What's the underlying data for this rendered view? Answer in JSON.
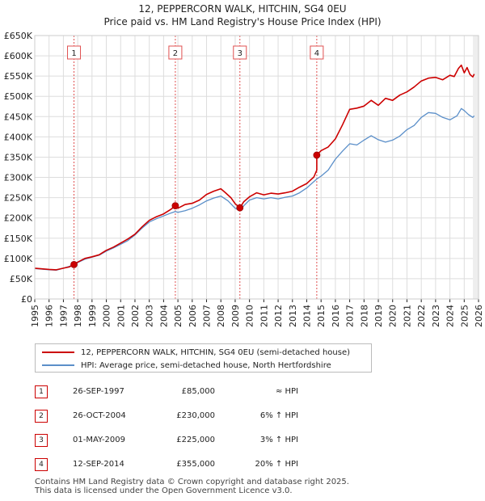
{
  "header": {
    "title": "12, PEPPERCORN WALK, HITCHIN, SG4 0EU",
    "subtitle": "Price paid vs. HM Land Registry's House Price Index (HPI)"
  },
  "colors": {
    "property": "#cc0000",
    "hpi": "#5b8fc9",
    "marker_line": "#e05050",
    "background": "#ffffff"
  },
  "chart_data": {
    "type": "line",
    "title": "12, PEPPERCORN WALK, HITCHIN, SG4 0EU",
    "subtitle": "Price paid vs. HM Land Registry's House Price Index (HPI)",
    "xlabel": "",
    "ylabel": "",
    "xlim": [
      1995,
      2026
    ],
    "ylim": [
      0,
      650000
    ],
    "y_ticks": [
      0,
      50000,
      100000,
      150000,
      200000,
      250000,
      300000,
      350000,
      400000,
      450000,
      500000,
      550000,
      600000,
      650000
    ],
    "y_tick_labels": [
      "£0",
      "£50K",
      "£100K",
      "£150K",
      "£200K",
      "£250K",
      "£300K",
      "£350K",
      "£400K",
      "£450K",
      "£500K",
      "£550K",
      "£600K",
      "£650K"
    ],
    "x_ticks": [
      1995,
      1996,
      1997,
      1998,
      1999,
      2000,
      2001,
      2002,
      2003,
      2004,
      2005,
      2006,
      2007,
      2008,
      2009,
      2010,
      2011,
      2012,
      2013,
      2014,
      2015,
      2016,
      2017,
      2018,
      2019,
      2020,
      2021,
      2022,
      2023,
      2024,
      2025,
      2026
    ],
    "grid": true,
    "series": [
      {
        "name": "12, PEPPERCORN WALK, HITCHIN, SG4 0EU (semi-detached house)",
        "color": "#cc0000",
        "points": [
          [
            1995.0,
            76000
          ],
          [
            1996.0,
            73000
          ],
          [
            1996.5,
            72000
          ],
          [
            1997.0,
            76000
          ],
          [
            1997.4,
            79000
          ],
          [
            1997.74,
            85000
          ],
          [
            1998.0,
            91000
          ],
          [
            1998.5,
            100000
          ],
          [
            1999.0,
            104000
          ],
          [
            1999.5,
            109000
          ],
          [
            2000.0,
            120000
          ],
          [
            2000.5,
            128000
          ],
          [
            2001.0,
            138000
          ],
          [
            2001.5,
            148000
          ],
          [
            2002.0,
            160000
          ],
          [
            2002.5,
            178000
          ],
          [
            2003.0,
            194000
          ],
          [
            2003.5,
            203000
          ],
          [
            2004.0,
            210000
          ],
          [
            2004.5,
            221000
          ],
          [
            2004.82,
            230000
          ],
          [
            2005.0,
            224000
          ],
          [
            2005.5,
            233000
          ],
          [
            2006.0,
            236000
          ],
          [
            2006.5,
            244000
          ],
          [
            2007.0,
            258000
          ],
          [
            2007.5,
            266000
          ],
          [
            2008.0,
            272000
          ],
          [
            2008.3,
            263000
          ],
          [
            2008.7,
            250000
          ],
          [
            2009.0,
            235000
          ],
          [
            2009.33,
            225000
          ],
          [
            2009.6,
            240000
          ],
          [
            2010.0,
            252000
          ],
          [
            2010.5,
            262000
          ],
          [
            2011.0,
            257000
          ],
          [
            2011.5,
            261000
          ],
          [
            2012.0,
            259000
          ],
          [
            2012.5,
            262000
          ],
          [
            2013.0,
            266000
          ],
          [
            2013.5,
            276000
          ],
          [
            2014.0,
            285000
          ],
          [
            2014.5,
            301000
          ],
          [
            2014.7,
            318000
          ],
          [
            2014.7,
            355000
          ],
          [
            2015.0,
            366000
          ],
          [
            2015.5,
            375000
          ],
          [
            2016.0,
            395000
          ],
          [
            2016.5,
            430000
          ],
          [
            2017.0,
            468000
          ],
          [
            2017.5,
            471000
          ],
          [
            2018.0,
            476000
          ],
          [
            2018.5,
            490000
          ],
          [
            2019.0,
            478000
          ],
          [
            2019.5,
            495000
          ],
          [
            2020.0,
            490000
          ],
          [
            2020.5,
            503000
          ],
          [
            2021.0,
            511000
          ],
          [
            2021.5,
            523000
          ],
          [
            2022.0,
            538000
          ],
          [
            2022.5,
            545000
          ],
          [
            2023.0,
            547000
          ],
          [
            2023.5,
            541000
          ],
          [
            2024.0,
            552000
          ],
          [
            2024.3,
            549000
          ],
          [
            2024.6,
            569000
          ],
          [
            2024.8,
            577000
          ],
          [
            2025.0,
            558000
          ],
          [
            2025.2,
            571000
          ],
          [
            2025.4,
            554000
          ],
          [
            2025.6,
            548000
          ],
          [
            2025.7,
            555000
          ]
        ]
      },
      {
        "name": "HPI: Average price, semi-detached house, North Hertfordshire",
        "color": "#5b8fc9",
        "points": [
          [
            1995.0,
            75000
          ],
          [
            1996.0,
            72000
          ],
          [
            1996.5,
            71000
          ],
          [
            1997.0,
            76000
          ],
          [
            1997.74,
            84000
          ],
          [
            1998.0,
            90000
          ],
          [
            1998.5,
            98000
          ],
          [
            1999.0,
            103000
          ],
          [
            1999.5,
            108000
          ],
          [
            2000.0,
            118000
          ],
          [
            2000.5,
            126000
          ],
          [
            2001.0,
            135000
          ],
          [
            2001.5,
            144000
          ],
          [
            2002.0,
            158000
          ],
          [
            2002.5,
            175000
          ],
          [
            2003.0,
            190000
          ],
          [
            2003.5,
            198000
          ],
          [
            2004.0,
            205000
          ],
          [
            2004.5,
            212000
          ],
          [
            2004.82,
            216000
          ],
          [
            2005.0,
            214000
          ],
          [
            2005.5,
            218000
          ],
          [
            2006.0,
            224000
          ],
          [
            2006.5,
            232000
          ],
          [
            2007.0,
            242000
          ],
          [
            2007.5,
            249000
          ],
          [
            2008.0,
            254000
          ],
          [
            2008.5,
            242000
          ],
          [
            2009.0,
            224000
          ],
          [
            2009.33,
            218000
          ],
          [
            2009.6,
            230000
          ],
          [
            2010.0,
            244000
          ],
          [
            2010.5,
            250000
          ],
          [
            2011.0,
            247000
          ],
          [
            2011.5,
            250000
          ],
          [
            2012.0,
            247000
          ],
          [
            2012.5,
            251000
          ],
          [
            2013.0,
            254000
          ],
          [
            2013.5,
            262000
          ],
          [
            2014.0,
            274000
          ],
          [
            2014.7,
            296000
          ],
          [
            2015.0,
            303000
          ],
          [
            2015.5,
            318000
          ],
          [
            2016.0,
            345000
          ],
          [
            2016.5,
            365000
          ],
          [
            2017.0,
            383000
          ],
          [
            2017.5,
            380000
          ],
          [
            2018.0,
            392000
          ],
          [
            2018.5,
            403000
          ],
          [
            2019.0,
            393000
          ],
          [
            2019.5,
            387000
          ],
          [
            2020.0,
            392000
          ],
          [
            2020.5,
            402000
          ],
          [
            2021.0,
            418000
          ],
          [
            2021.5,
            428000
          ],
          [
            2022.0,
            448000
          ],
          [
            2022.5,
            460000
          ],
          [
            2023.0,
            458000
          ],
          [
            2023.5,
            448000
          ],
          [
            2024.0,
            442000
          ],
          [
            2024.5,
            452000
          ],
          [
            2024.8,
            470000
          ],
          [
            2025.0,
            465000
          ],
          [
            2025.3,
            455000
          ],
          [
            2025.6,
            448000
          ],
          [
            2025.7,
            452000
          ]
        ]
      }
    ],
    "sales": [
      {
        "num": "1",
        "x": 1997.74,
        "price": 85000
      },
      {
        "num": "2",
        "x": 2004.82,
        "price": 230000
      },
      {
        "num": "3",
        "x": 2009.33,
        "price": 225000
      },
      {
        "num": "4",
        "x": 2014.7,
        "price": 355000
      }
    ]
  },
  "legend": {
    "items": [
      {
        "label": "12, PEPPERCORN WALK, HITCHIN, SG4 0EU (semi-detached house)"
      },
      {
        "label": "HPI: Average price, semi-detached house, North Hertfordshire"
      }
    ]
  },
  "transactions": [
    {
      "num": "1",
      "date": "26-SEP-1997",
      "price": "£85,000",
      "hpi": "≈ HPI"
    },
    {
      "num": "2",
      "date": "26-OCT-2004",
      "price": "£230,000",
      "hpi": "6% ↑ HPI"
    },
    {
      "num": "3",
      "date": "01-MAY-2009",
      "price": "£225,000",
      "hpi": "3% ↑ HPI"
    },
    {
      "num": "4",
      "date": "12-SEP-2014",
      "price": "£355,000",
      "hpi": "20% ↑ HPI"
    }
  ],
  "footer": {
    "line1": "Contains HM Land Registry data © Crown copyright and database right 2025.",
    "line2": "This data is licensed under the Open Government Licence v3.0."
  }
}
